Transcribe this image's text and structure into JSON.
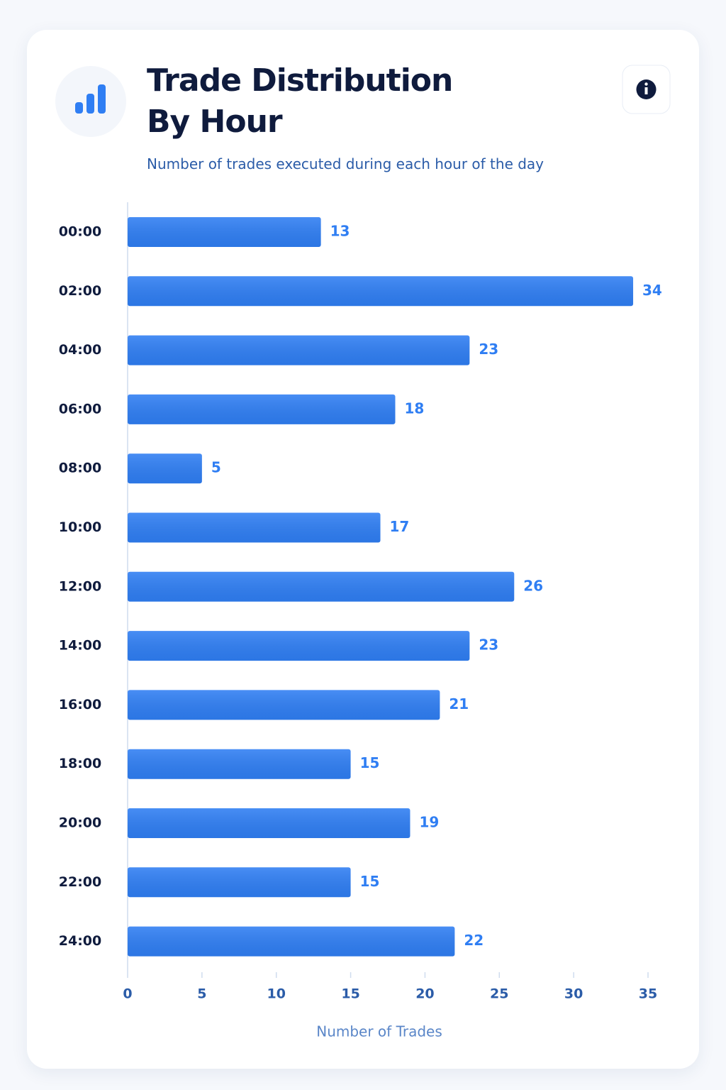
{
  "chart_data": {
    "type": "bar",
    "orientation": "horizontal",
    "title": "Trade Distribution By Hour",
    "subtitle": "Number of trades executed during each hour of the day",
    "x_label": "Number of Trades",
    "categories": [
      "00:00",
      "02:00",
      "04:00",
      "06:00",
      "08:00",
      "10:00",
      "12:00",
      "14:00",
      "16:00",
      "18:00",
      "20:00",
      "22:00",
      "24:00"
    ],
    "values": [
      13,
      34,
      23,
      18,
      5,
      17,
      26,
      23,
      21,
      15,
      19,
      15,
      22
    ],
    "color": "#2f7ef3",
    "xlim": [
      0,
      35
    ],
    "xticks": [
      0,
      5,
      10,
      15,
      20,
      25,
      30,
      35
    ],
    "grid": false
  }
}
